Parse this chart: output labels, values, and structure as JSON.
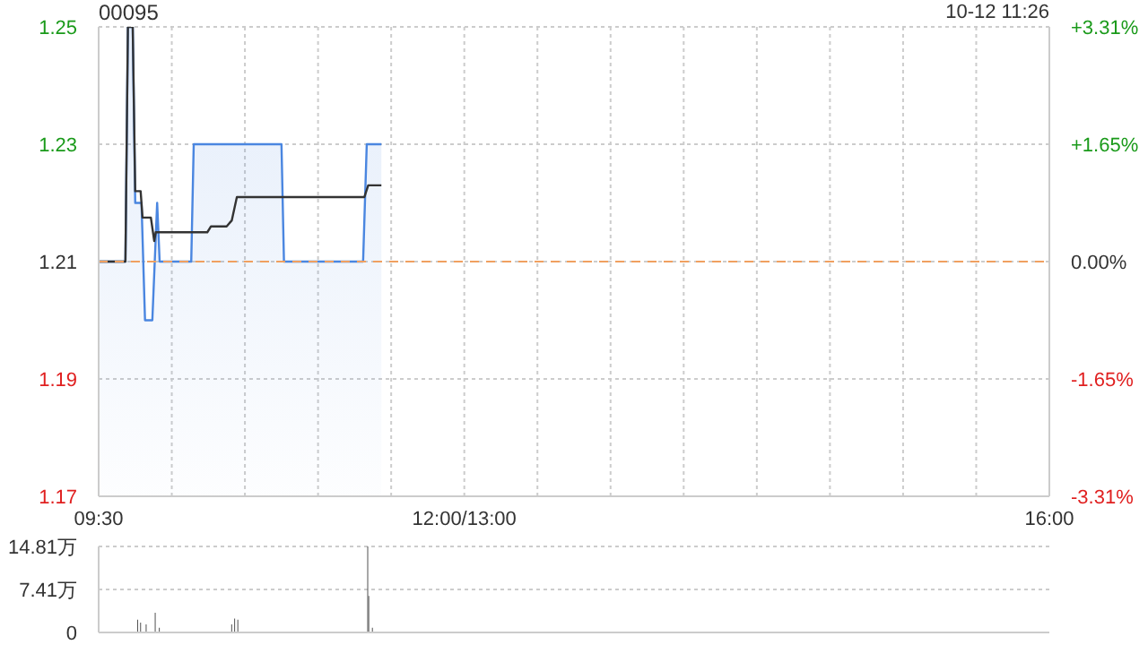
{
  "chart_data": [
    {
      "type": "line",
      "title": "00095",
      "annotations": [
        "10-12 11:26"
      ],
      "xlim": [
        9.5,
        16
      ],
      "xticks": [
        {
          "value": 9.5,
          "label": "09:30"
        },
        {
          "value": 10,
          "label": null
        },
        {
          "value": 10.5,
          "label": null
        },
        {
          "value": 11,
          "label": null
        },
        {
          "value": 11.5,
          "label": null
        },
        {
          "value": 12,
          "label": "12:00/13:00"
        },
        {
          "value": 12.5,
          "label": null
        },
        {
          "value": 13,
          "label": null
        },
        {
          "value": 13.5,
          "label": null
        },
        {
          "value": 14,
          "label": null
        },
        {
          "value": 14.5,
          "label": null
        },
        {
          "value": 15,
          "label": null
        },
        {
          "value": 15.5,
          "label": null
        },
        {
          "value": 16,
          "label": "16:00"
        }
      ],
      "ylim": [
        1.17,
        1.25
      ],
      "yticks": [
        1.17,
        1.19,
        1.21,
        1.23,
        1.25
      ],
      "y2lim": [
        -3.31,
        3.31
      ],
      "y2ticks": [
        {
          "value": -3.31,
          "label": "-3.31%"
        },
        {
          "value": -1.65,
          "label": "-1.65%"
        },
        {
          "value": 0,
          "label": "0.00%"
        },
        {
          "value": 1.65,
          "label": "+1.65%"
        },
        {
          "value": 3.31,
          "label": "+3.31%"
        }
      ],
      "grid": true,
      "ref_lines": [
        {
          "axis": "y",
          "value": 1.21,
          "color": "#f0a060",
          "line_style": "dashed"
        }
      ],
      "series": [
        {
          "type": "area",
          "color": "#4a86e0",
          "x": [
            9.5,
            9.683,
            9.7,
            9.733,
            9.75,
            9.793,
            9.817,
            9.867,
            9.9,
            9.917,
            10.133,
            10.15,
            10.75,
            10.767,
            11.308,
            11.333,
            11.433
          ],
          "values": [
            1.21,
            1.21,
            1.25,
            1.25,
            1.22,
            1.22,
            1.2,
            1.2,
            1.22,
            1.21,
            1.21,
            1.23,
            1.23,
            1.21,
            1.21,
            1.23,
            1.23
          ]
        },
        {
          "color": "#333333",
          "x": [
            9.5,
            9.683,
            9.7,
            9.733,
            9.75,
            9.787,
            9.8,
            9.857,
            9.88,
            9.89,
            10.243,
            10.268,
            10.375,
            10.41,
            10.445,
            11.317,
            11.343,
            11.433
          ],
          "values": [
            1.21,
            1.21,
            1.25,
            1.25,
            1.222,
            1.222,
            1.2175,
            1.2175,
            1.2135,
            1.215,
            1.215,
            1.216,
            1.216,
            1.217,
            1.221,
            1.221,
            1.223,
            1.223
          ]
        }
      ]
    },
    {
      "type": "bar",
      "xlim": [
        9.5,
        16
      ],
      "ylim": [
        0,
        14.81
      ],
      "yticks": [
        0,
        {
          "value": 7.41,
          "label": "7.41万"
        },
        {
          "value": 14.81,
          "label": "14.81万"
        }
      ],
      "tick_labels": "y",
      "grid": "y",
      "color": "#555555",
      "x": [
        9.767,
        9.787,
        9.825,
        9.887,
        9.915,
        10.41,
        10.43,
        10.452,
        11.34,
        11.347,
        11.372
      ],
      "values": [
        2.2,
        1.7,
        1.4,
        3.4,
        0.8,
        1.4,
        2.4,
        2.2,
        14.8,
        6.3,
        0.8
      ]
    }
  ]
}
